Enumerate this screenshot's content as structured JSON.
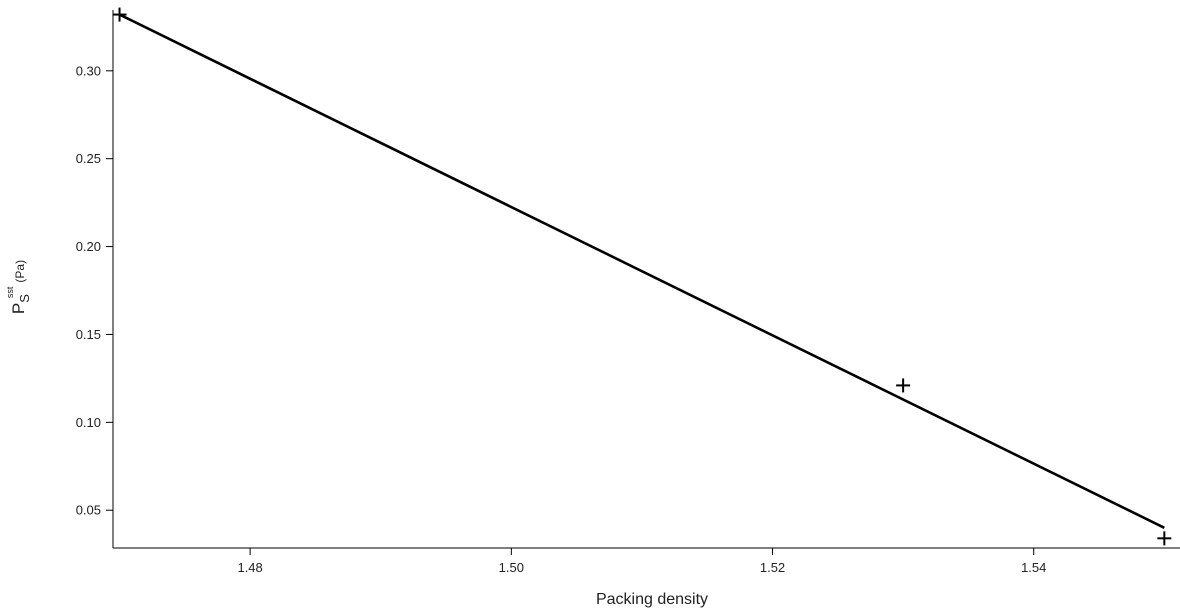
{
  "chart_data": {
    "type": "scatter",
    "title": "",
    "xlabel": "Packing density",
    "ylabel": {
      "main": "P",
      "subscript": "S",
      "superscript": "sst",
      "unit": "(Pa)"
    },
    "xlim": [
      1.4695,
      1.5512
    ],
    "ylim": [
      0.0285,
      0.3346
    ],
    "xticks": [
      "1.48",
      "1.50",
      "1.52",
      "1.54"
    ],
    "yticks": [
      "0.05",
      "0.10",
      "0.15",
      "0.20",
      "0.25",
      "0.30"
    ],
    "grid": false,
    "legend": "none",
    "series": [
      {
        "kind": "points",
        "marker": "plus",
        "x": [
          1.47,
          1.53,
          1.55
        ],
        "y": [
          0.332,
          0.121,
          0.034
        ]
      },
      {
        "kind": "fit-line",
        "x": [
          1.47,
          1.55
        ],
        "y": [
          0.332,
          0.04
        ]
      }
    ],
    "colors": {
      "marks": "#000000",
      "axes": "#000000",
      "text": "#222222"
    }
  }
}
